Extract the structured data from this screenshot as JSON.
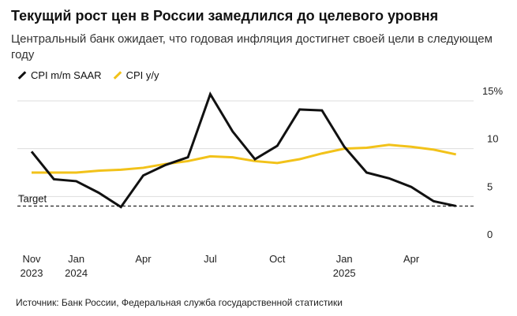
{
  "title": "Текущий рост цен в России замедлился до целевого уровня",
  "subtitle": "Центральный банк ожидает, что годовая инфляция достигнет своей цели в следующем году",
  "source": "Источник: Банк России, Федеральная служба государственной статистики",
  "colors": {
    "black": "#111111",
    "yellow": "#f2c21a",
    "grid": "#dddddd"
  },
  "chart_data": {
    "type": "line",
    "x": [
      "2023-11",
      "2023-12",
      "2024-01",
      "2024-02",
      "2024-03",
      "2024-04",
      "2024-05",
      "2024-06",
      "2024-07",
      "2024-08",
      "2024-09",
      "2024-10",
      "2024-11",
      "2024-12",
      "2025-01",
      "2025-02",
      "2025-03",
      "2025-04",
      "2025-05",
      "2025-06"
    ],
    "series": [
      {
        "name": "CPI m/m SAAR",
        "color": "#111111",
        "values": [
          9.7,
          6.8,
          6.6,
          5.4,
          3.9,
          7.2,
          8.3,
          9.1,
          15.7,
          11.8,
          8.9,
          10.3,
          14.1,
          14.0,
          10.2,
          7.5,
          6.9,
          6.0,
          4.5,
          4.0
        ]
      },
      {
        "name": "CPI y/y",
        "color": "#f2c21a",
        "values": [
          7.5,
          7.5,
          7.5,
          7.7,
          7.8,
          8.0,
          8.4,
          8.7,
          9.2,
          9.1,
          8.7,
          8.5,
          8.9,
          9.5,
          10.0,
          10.1,
          10.4,
          10.2,
          9.9,
          9.4
        ]
      }
    ],
    "target": {
      "label": "Target",
      "value": 4
    },
    "ylim": [
      0,
      15
    ],
    "yticks": [
      {
        "v": 15,
        "label": "15%"
      },
      {
        "v": 10,
        "label": "10"
      },
      {
        "v": 5,
        "label": "5"
      },
      {
        "v": 0,
        "label": "0"
      }
    ],
    "xticks": [
      {
        "i": 0,
        "label": "Nov",
        "year": "2023"
      },
      {
        "i": 2,
        "label": "Jan",
        "year": "2024"
      },
      {
        "i": 5,
        "label": "Apr",
        "year": ""
      },
      {
        "i": 8,
        "label": "Jul",
        "year": ""
      },
      {
        "i": 11,
        "label": "Oct",
        "year": ""
      },
      {
        "i": 14,
        "label": "Jan",
        "year": "2025"
      },
      {
        "i": 17,
        "label": "Apr",
        "year": ""
      }
    ],
    "grid": true,
    "legend": "top-left"
  }
}
